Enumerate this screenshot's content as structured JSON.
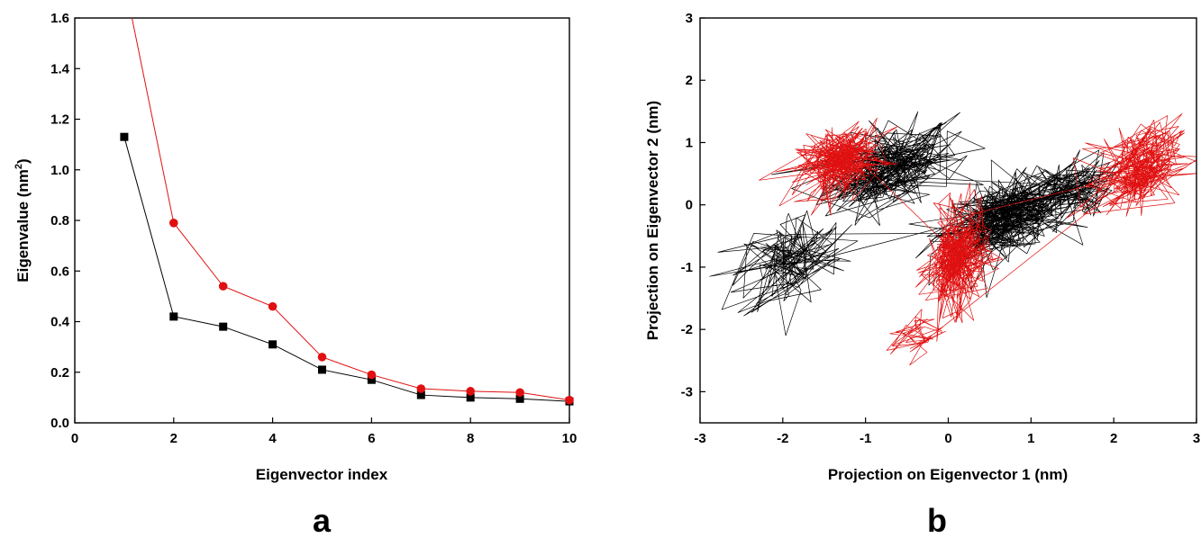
{
  "chart_data": [
    {
      "type": "line",
      "panel_label": "a",
      "xlabel": "Eigenvector index",
      "ylabel": "Eigenvalue (nm",
      "ylabel_sup": "2",
      "ylabel_close": ")",
      "xlim": [
        0,
        10
      ],
      "ylim": [
        0,
        1.6
      ],
      "x_ticks": [
        0,
        2,
        4,
        6,
        8,
        10
      ],
      "y_ticks": [
        0.0,
        0.2,
        0.4,
        0.6,
        0.8,
        1.0,
        1.2,
        1.4,
        1.6
      ],
      "y_tick_labels": [
        "0.0",
        "0.2",
        "0.4",
        "0.6",
        "0.8",
        "1.0",
        "1.2",
        "1.4",
        "1.6"
      ],
      "grid": false,
      "x": [
        1,
        2,
        3,
        4,
        5,
        6,
        7,
        8,
        9,
        10
      ],
      "series": [
        {
          "marker": "square",
          "color": "#000000",
          "values": [
            1.13,
            0.42,
            0.38,
            0.31,
            0.21,
            0.17,
            0.11,
            0.1,
            0.095,
            0.085
          ]
        },
        {
          "marker": "circle",
          "color": "#e01010",
          "values": [
            1.75,
            0.79,
            0.54,
            0.46,
            0.26,
            0.19,
            0.135,
            0.125,
            0.12,
            0.09
          ]
        }
      ]
    },
    {
      "type": "line",
      "panel_label": "b",
      "xlabel": "Projection on Eigenvector 1 (nm)",
      "ylabel": "Projection on Eigenvector 2 (nm)",
      "xlim": [
        -3,
        3
      ],
      "ylim": [
        -3.5,
        3
      ],
      "x_ticks": [
        -3,
        -2,
        -1,
        0,
        1,
        2,
        3
      ],
      "y_ticks": [
        -3,
        -2,
        -1,
        0,
        1,
        2,
        3
      ],
      "grid": false,
      "series": [
        {
          "color": "#000000",
          "trajectory": "noisy random walk",
          "clusters": [
            {
              "cx": -0.7,
              "cy": 0.6,
              "sx": 0.55,
              "sy": 0.45,
              "n": 260
            },
            {
              "cx": 0.7,
              "cy": -0.2,
              "sx": 0.55,
              "sy": 0.4,
              "n": 320
            },
            {
              "cx": -1.9,
              "cy": -0.9,
              "sx": 0.45,
              "sy": 0.55,
              "n": 140
            },
            {
              "cx": 1.4,
              "cy": 0.2,
              "sx": 0.4,
              "sy": 0.35,
              "n": 120
            }
          ]
        },
        {
          "color": "#e01010",
          "trajectory": "noisy random walk",
          "clusters": [
            {
              "cx": -1.3,
              "cy": 0.7,
              "sx": 0.35,
              "sy": 0.35,
              "n": 280
            },
            {
              "cx": 0.1,
              "cy": -0.9,
              "sx": 0.25,
              "sy": 0.55,
              "n": 280
            },
            {
              "cx": 2.3,
              "cy": 0.6,
              "sx": 0.35,
              "sy": 0.45,
              "n": 240
            },
            {
              "cx": -0.4,
              "cy": -2.1,
              "sx": 0.25,
              "sy": 0.25,
              "n": 40
            }
          ]
        }
      ]
    }
  ]
}
